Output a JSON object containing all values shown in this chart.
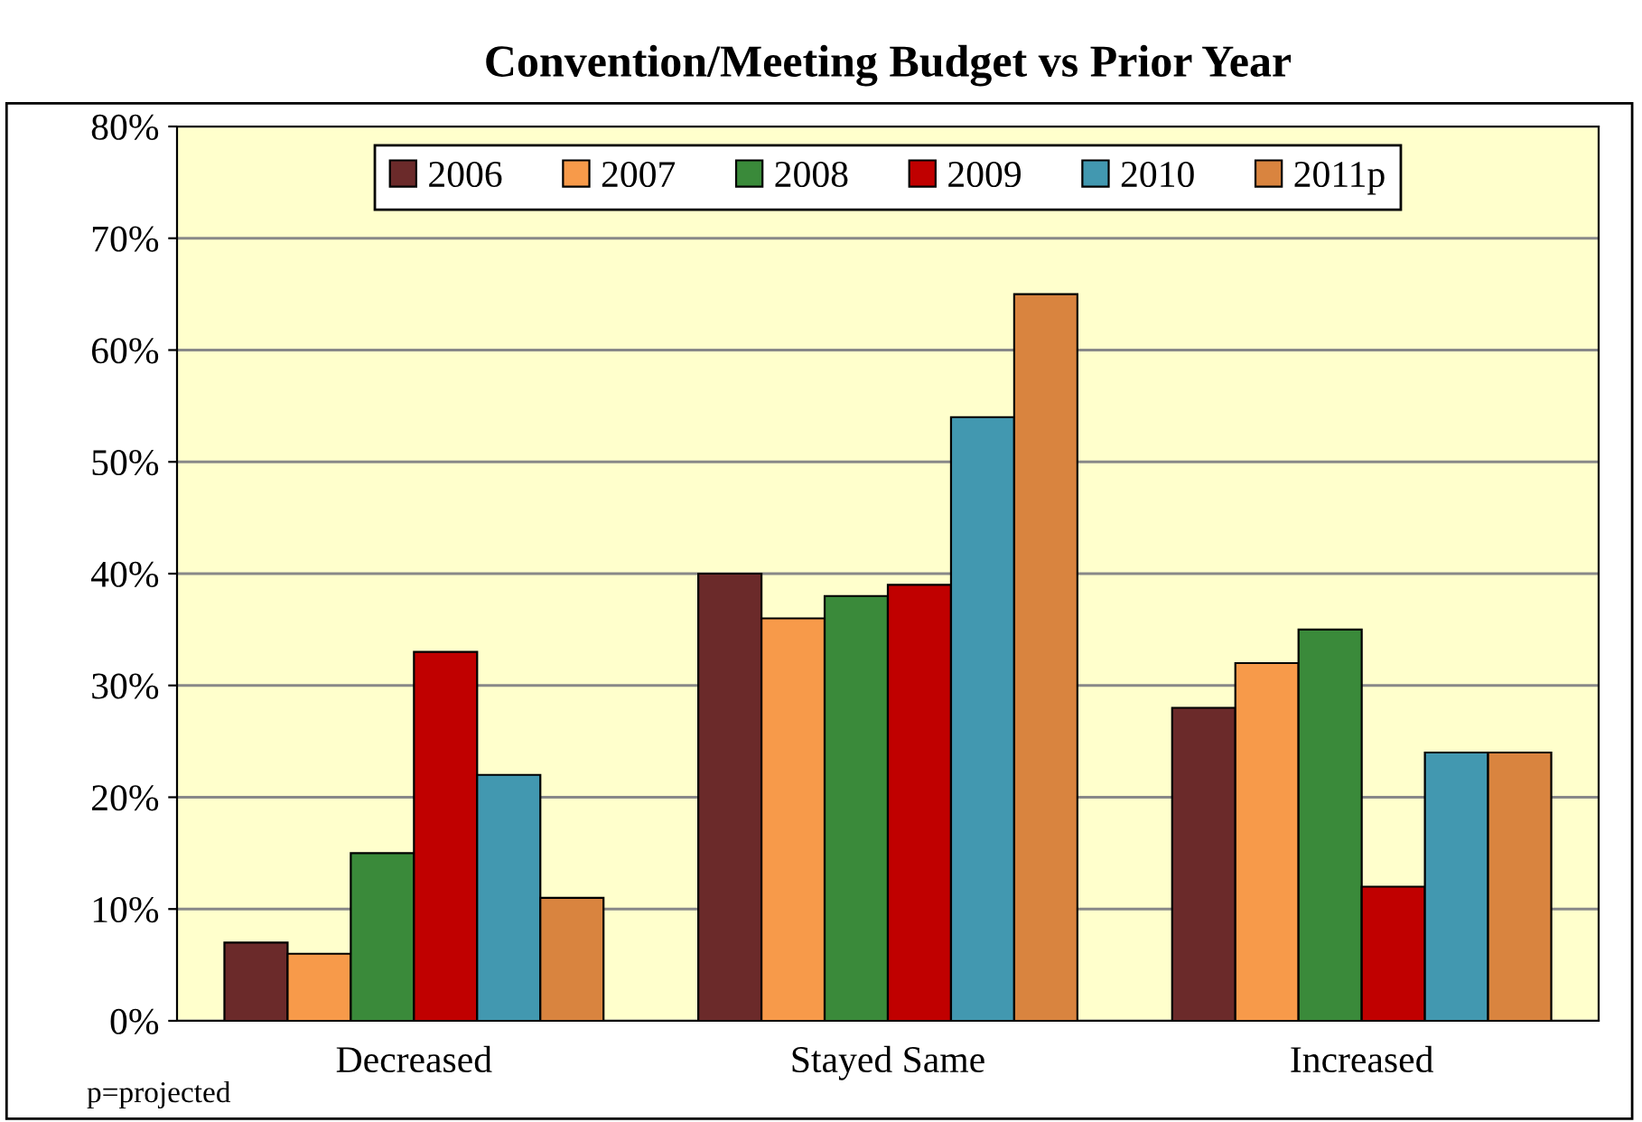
{
  "chart_data": {
    "type": "bar",
    "title": "Convention/Meeting Budget vs Prior Year",
    "categories": [
      "Decreased",
      "Stayed Same",
      "Increased"
    ],
    "series": [
      {
        "name": "2006",
        "color": "#6b2a2a",
        "values": [
          7,
          40,
          28
        ]
      },
      {
        "name": "2007",
        "color": "#f79a4a",
        "values": [
          6,
          36,
          32
        ]
      },
      {
        "name": "2008",
        "color": "#3a8a3a",
        "values": [
          15,
          38,
          35
        ]
      },
      {
        "name": "2009",
        "color": "#c00000",
        "values": [
          33,
          39,
          12
        ]
      },
      {
        "name": "2010",
        "color": "#4298b0",
        "values": [
          22,
          54,
          24
        ]
      },
      {
        "name": "2011p",
        "color": "#d9843f",
        "values": [
          11,
          65,
          24
        ]
      }
    ],
    "ylim": [
      0,
      80
    ],
    "yticks": [
      {
        "value": 0,
        "label": "0%"
      },
      {
        "value": 10,
        "label": "10%"
      },
      {
        "value": 20,
        "label": "20%"
      },
      {
        "value": 30,
        "label": "30%"
      },
      {
        "value": 40,
        "label": "40%"
      },
      {
        "value": 50,
        "label": "50%"
      },
      {
        "value": 60,
        "label": "60%"
      },
      {
        "value": 70,
        "label": "70%"
      },
      {
        "value": 80,
        "label": "80%"
      }
    ],
    "grid": "y",
    "legend": "top",
    "annotations": [
      "p=projected"
    ]
  }
}
